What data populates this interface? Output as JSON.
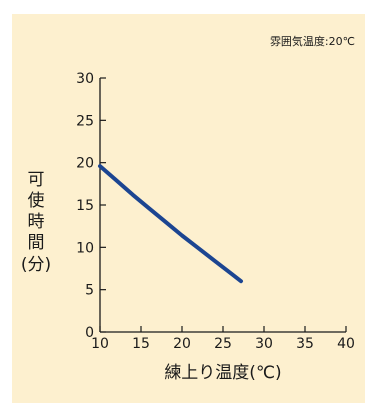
{
  "colors": {
    "background": "#fdf0cf",
    "axis": "#1a1a1a",
    "text": "#1a1a1a",
    "series": "#1c4591"
  },
  "chart_data": {
    "type": "line",
    "annotation": "雰囲気温度:20℃",
    "xlabel": "練上り温度(℃)",
    "ylabel": "可使時間(分)",
    "xlim": [
      10,
      40
    ],
    "ylim": [
      0,
      30
    ],
    "xticks": [
      10,
      15,
      20,
      25,
      30,
      35,
      40
    ],
    "yticks": [
      0,
      5,
      10,
      15,
      20,
      25,
      30
    ],
    "grid": false,
    "legend": "none",
    "series": [
      {
        "x": [
          10,
          12,
          14,
          16,
          18,
          20,
          22,
          24,
          26,
          27.2
        ],
        "y": [
          19.6,
          17.9,
          16.2,
          14.6,
          13.0,
          11.4,
          9.9,
          8.4,
          6.9,
          6.0
        ]
      }
    ]
  }
}
